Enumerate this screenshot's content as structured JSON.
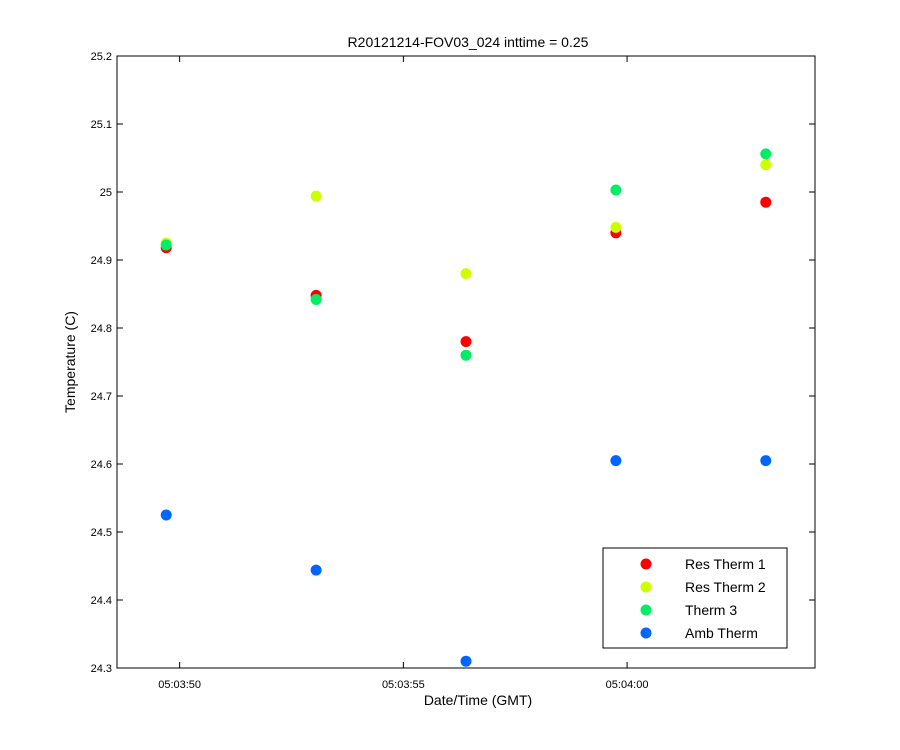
{
  "chart_data": {
    "type": "scatter",
    "title": "R20121214-FOV03_024 inttime = 0.25",
    "xlabel": "Date/Time (GMT)",
    "ylabel": "Temperature (C)",
    "x_ticks": [
      "05:03:50",
      "05:03:55",
      "05:04:00"
    ],
    "y_ticks": [
      "24.3",
      "24.4",
      "24.5",
      "24.6",
      "24.7",
      "24.8",
      "24.9",
      "25",
      "25.1",
      "25.2"
    ],
    "xlim": [
      "05:03:48.6",
      "05:04:04.2"
    ],
    "ylim": [
      24.3,
      25.2
    ],
    "grid": false,
    "legend_position": "bottom-right",
    "x": [
      "05:03:49.7",
      "05:03:53.05",
      "05:03:56.4",
      "05:03:59.75",
      "05:04:03.1"
    ],
    "series": [
      {
        "name": "Res Therm 1",
        "color": "#ff0000",
        "values": [
          24.918,
          24.848,
          24.78,
          24.94,
          24.985
        ]
      },
      {
        "name": "Res Therm 2",
        "color": "#ccff00",
        "values": [
          24.925,
          24.994,
          24.88,
          24.948,
          25.04
        ]
      },
      {
        "name": "Therm 3",
        "color": "#00ee66",
        "values": [
          24.922,
          24.842,
          24.76,
          25.003,
          25.056
        ]
      },
      {
        "name": "Amb Therm",
        "color": "#0066ff",
        "values": [
          24.525,
          24.444,
          24.31,
          24.605,
          24.605
        ]
      }
    ]
  }
}
